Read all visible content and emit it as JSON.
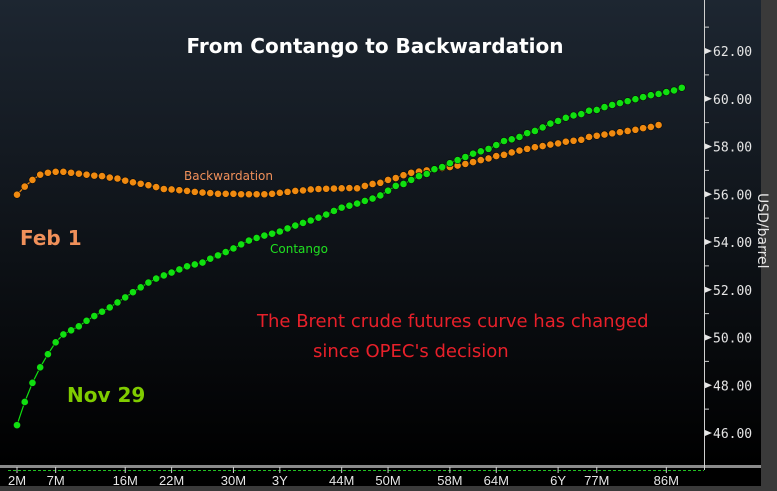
{
  "chart_data": {
    "type": "line",
    "title": "From Contango to Backwardation",
    "xlabel": "",
    "ylabel": "USD/barrel",
    "ylim": [
      45.5,
      63.5
    ],
    "xlim": [
      1.5,
      91
    ],
    "yticks": [
      46,
      48,
      50,
      52,
      54,
      56,
      58,
      60,
      62
    ],
    "ytick_labels": [
      "46.00",
      "48.00",
      "50.00",
      "52.00",
      "54.00",
      "56.00",
      "58.00",
      "60.00",
      "62.00"
    ],
    "xticks": [
      {
        "month": 2,
        "label": "2M"
      },
      {
        "month": 7,
        "label": "7M"
      },
      {
        "month": 16,
        "label": "16M"
      },
      {
        "month": 22,
        "label": "22M"
      },
      {
        "month": 30,
        "label": "30M"
      },
      {
        "month": 36,
        "label": "3Y"
      },
      {
        "month": 44,
        "label": "44M"
      },
      {
        "month": 50,
        "label": "50M"
      },
      {
        "month": 58,
        "label": "58M"
      },
      {
        "month": 64,
        "label": "64M"
      },
      {
        "month": 72,
        "label": "6Y"
      },
      {
        "month": 77,
        "label": "77M"
      },
      {
        "month": 86,
        "label": "86M"
      }
    ],
    "series": [
      {
        "name": "Backwardation",
        "date_label": "Feb 1",
        "color": "#f08a10",
        "label_color": "#f0905a",
        "x_start_month": 2,
        "values": [
          55.98,
          56.32,
          56.6,
          56.82,
          56.9,
          56.94,
          56.94,
          56.9,
          56.86,
          56.82,
          56.78,
          56.76,
          56.7,
          56.66,
          56.57,
          56.5,
          56.44,
          56.38,
          56.3,
          56.22,
          56.2,
          56.17,
          56.14,
          56.1,
          56.07,
          56.05,
          56.02,
          56.02,
          56.02,
          56.0,
          56.0,
          56.0,
          56.0,
          56.02,
          56.06,
          56.1,
          56.14,
          56.16,
          56.2,
          56.22,
          56.23,
          56.24,
          56.25,
          56.26,
          56.25,
          56.35,
          56.43,
          56.48,
          56.6,
          56.68,
          56.8,
          56.9,
          56.95,
          57.0,
          57.05,
          57.1,
          57.14,
          57.2,
          57.27,
          57.35,
          57.43,
          57.5,
          57.6,
          57.65,
          57.75,
          57.83,
          57.9,
          57.97,
          58.02,
          58.08,
          58.13,
          58.2,
          58.24,
          58.28,
          58.4,
          58.45,
          58.5,
          58.55,
          58.6,
          58.65,
          58.7,
          58.77,
          58.82,
          58.9
        ]
      },
      {
        "name": "Contango",
        "date_label": "Nov 29",
        "color": "#10e010",
        "label_color": "#80cc00",
        "x_start_month": 2,
        "values": [
          46.33,
          47.3,
          48.1,
          48.75,
          49.3,
          49.8,
          50.13,
          50.3,
          50.47,
          50.7,
          50.9,
          51.08,
          51.26,
          51.47,
          51.68,
          51.9,
          52.1,
          52.3,
          52.47,
          52.6,
          52.72,
          52.85,
          52.98,
          53.06,
          53.14,
          53.3,
          53.44,
          53.58,
          53.73,
          53.9,
          54.06,
          54.17,
          54.27,
          54.35,
          54.44,
          54.57,
          54.69,
          54.8,
          54.9,
          55.02,
          55.15,
          55.3,
          55.44,
          55.52,
          55.61,
          55.72,
          55.82,
          55.95,
          56.15,
          56.35,
          56.43,
          56.6,
          56.76,
          56.85,
          57.05,
          57.14,
          57.3,
          57.43,
          57.56,
          57.7,
          57.8,
          57.9,
          58.06,
          58.23,
          58.3,
          58.4,
          58.56,
          58.65,
          58.8,
          58.96,
          59.07,
          59.2,
          59.3,
          59.36,
          59.5,
          59.53,
          59.65,
          59.74,
          59.82,
          59.9,
          59.98,
          60.07,
          60.15,
          60.2,
          60.28,
          60.35,
          60.46
        ]
      }
    ],
    "annotations": [
      "The Brent crude futures curve has changed",
      "since OPEC's decision"
    ],
    "annotation_color": "#e8202a"
  }
}
